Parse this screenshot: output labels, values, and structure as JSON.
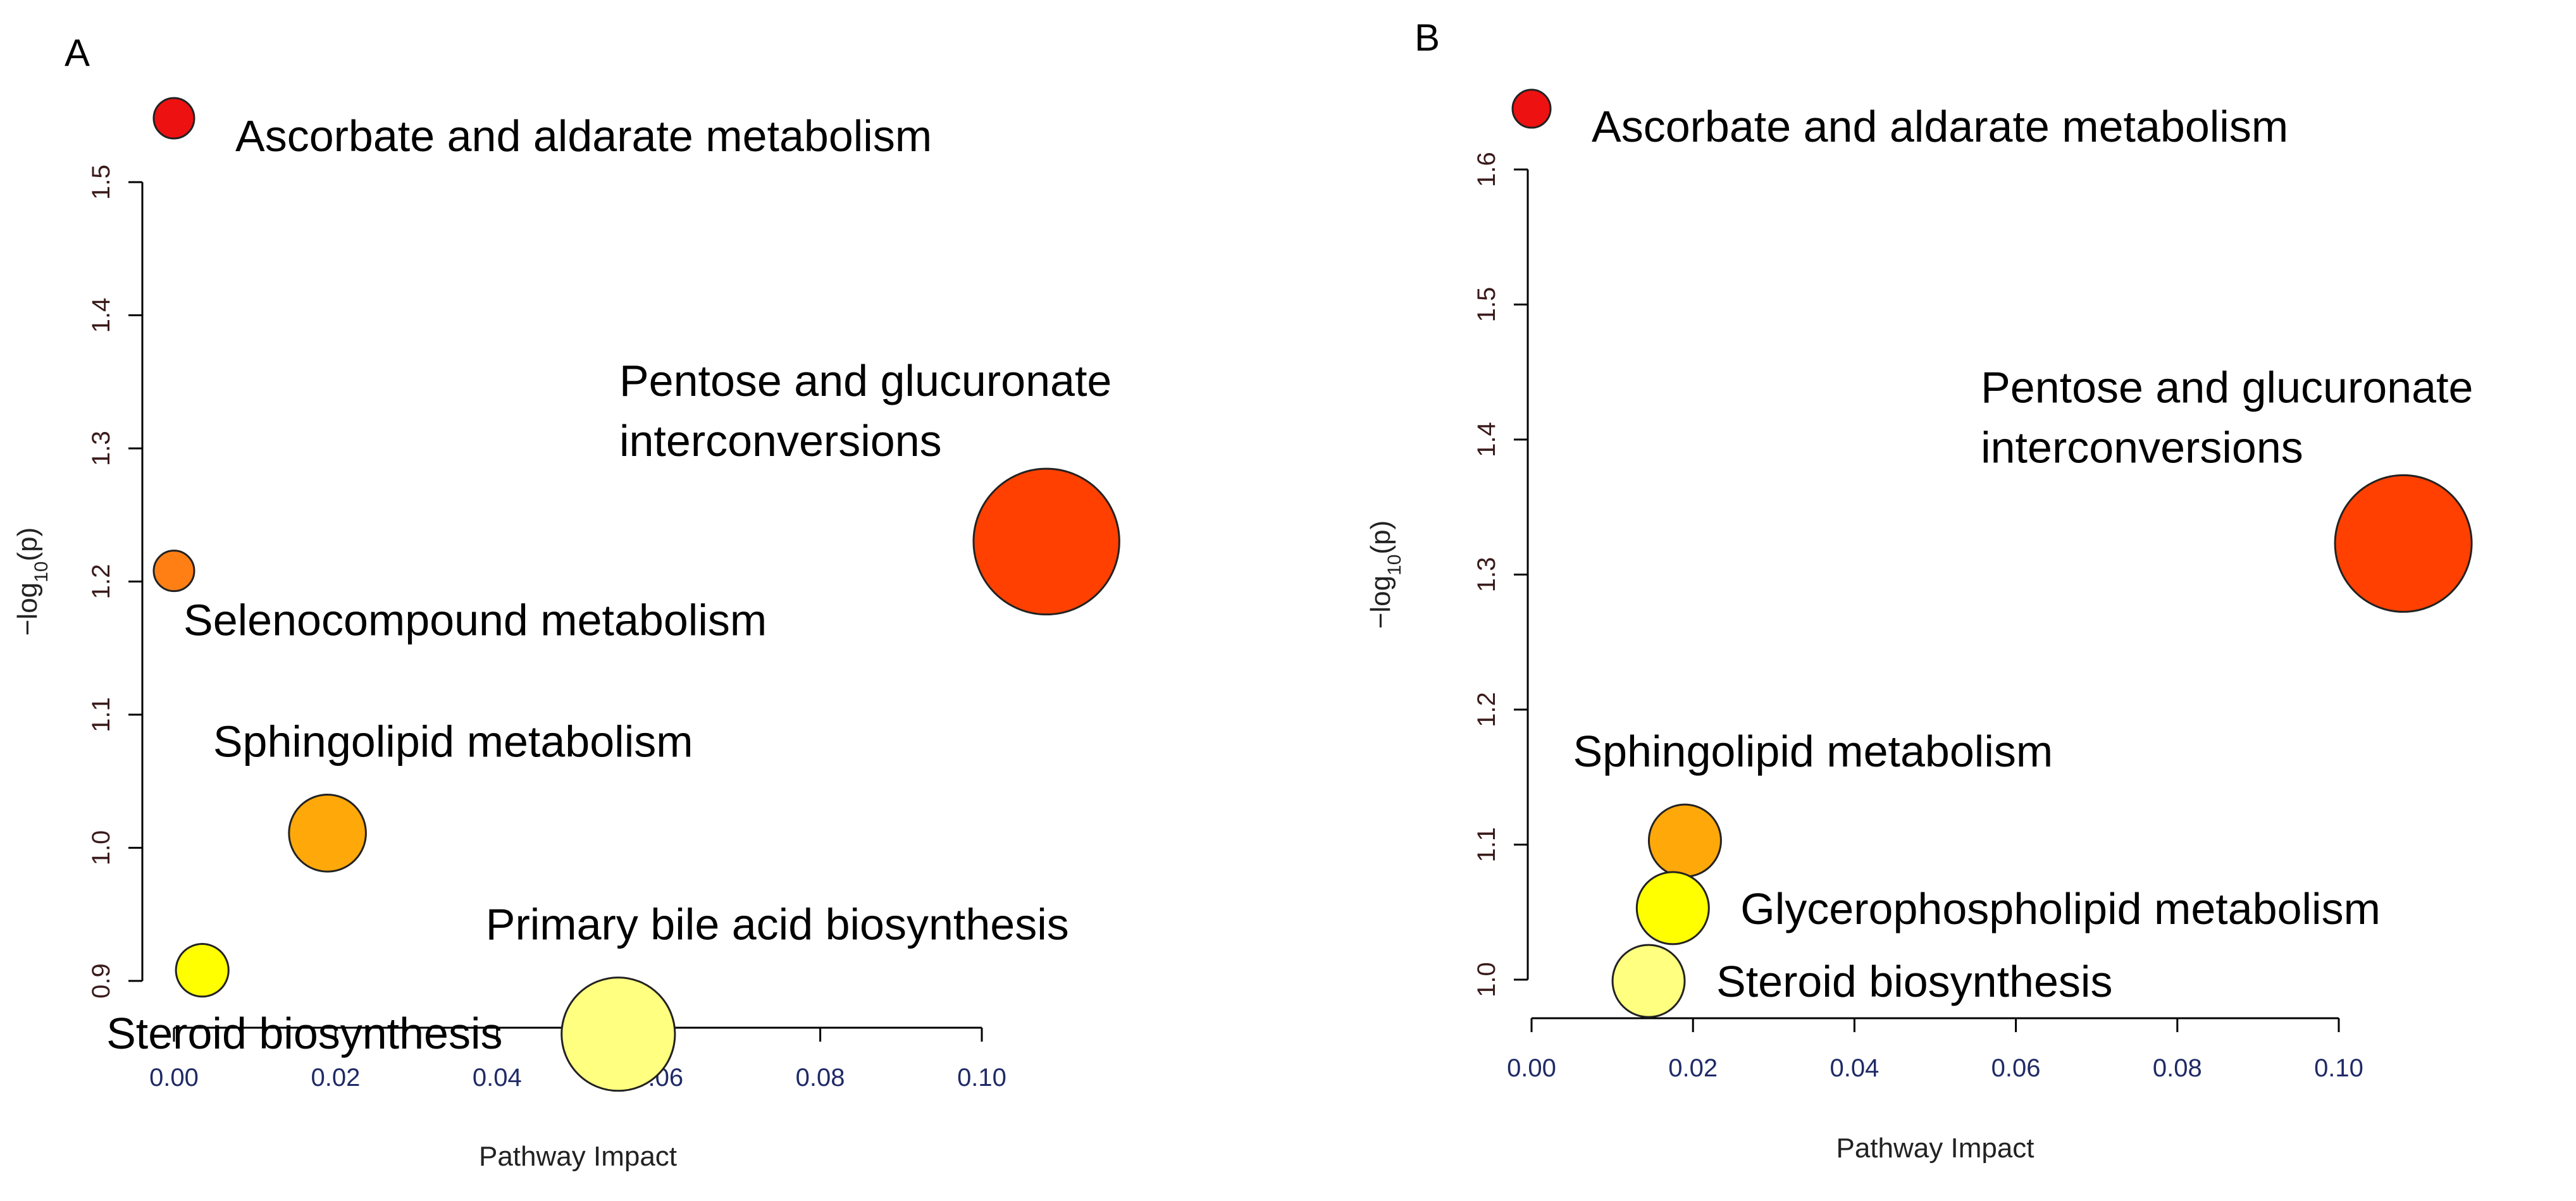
{
  "chart_data": [
    {
      "type": "scatter",
      "panel_label": "A",
      "xlabel": "Pathway  Impact",
      "ylabel_main": "−log",
      "ylabel_sub": "10",
      "ylabel_tail": "(p)",
      "xlim": [
        0,
        0.1
      ],
      "ylim": [
        0.9,
        1.5
      ],
      "xticks": [
        0.0,
        0.02,
        0.04,
        0.06,
        0.08,
        0.1
      ],
      "xtick_labels": [
        "0.00",
        "0.02",
        "0.04",
        "0.06",
        "0.08",
        "0.10"
      ],
      "yticks": [
        0.9,
        1.0,
        1.1,
        1.2,
        1.3,
        1.4,
        1.5
      ],
      "ytick_labels": [
        "0.9",
        "1.0",
        "1.1",
        "1.2",
        "1.3",
        "1.4",
        "1.5"
      ],
      "points": [
        {
          "name": "Ascorbate and aldarate metabolism",
          "x": 0.0,
          "y": 1.548,
          "size": 1.0,
          "color": "#ee1111",
          "label_pos": "right-below"
        },
        {
          "name": "Pentose and glucuronate interconversions",
          "label_lines": [
            "Pentose and glucuronate",
            "interconversions"
          ],
          "x": 0.108,
          "y": 1.23,
          "size": 3.6,
          "color": "#ff4000",
          "label_pos": "above-left"
        },
        {
          "name": "Selenocompound metabolism",
          "x": 0.0,
          "y": 1.208,
          "size": 1.0,
          "color": "#ff7f14",
          "label_pos": "below-right"
        },
        {
          "name": "Sphingolipid metabolism",
          "x": 0.019,
          "y": 1.011,
          "size": 1.9,
          "color": "#ffa80a",
          "label_pos": "above"
        },
        {
          "name": "Steroid biosynthesis",
          "x": 0.0035,
          "y": 0.908,
          "size": 1.3,
          "color": "#ffff00",
          "label_pos": "below-left"
        },
        {
          "name": "Primary bile acid biosynthesis",
          "x": 0.055,
          "y": 0.86,
          "size": 2.8,
          "color": "#ffff80",
          "label_pos": "above"
        }
      ]
    },
    {
      "type": "scatter",
      "panel_label": "B",
      "xlabel": "Pathway  Impact",
      "ylabel_main": "−log",
      "ylabel_sub": "10",
      "ylabel_tail": "(p)",
      "xlim": [
        0,
        0.1
      ],
      "ylim": [
        1.0,
        1.6
      ],
      "xticks": [
        0.0,
        0.02,
        0.04,
        0.06,
        0.08,
        0.1
      ],
      "xtick_labels": [
        "0.00",
        "0.02",
        "0.04",
        "0.06",
        "0.08",
        "0.10"
      ],
      "yticks": [
        1.0,
        1.1,
        1.2,
        1.3,
        1.4,
        1.5,
        1.6
      ],
      "ytick_labels": [
        "1.0",
        "1.1",
        "1.2",
        "1.3",
        "1.4",
        "1.5",
        "1.6"
      ],
      "points": [
        {
          "name": "Ascorbate and aldarate metabolism",
          "x": 0.0,
          "y": 1.645,
          "size": 1.0,
          "color": "#ee1111",
          "label_pos": "right-below"
        },
        {
          "name": "Pentose and glucuronate interconversions",
          "label_lines": [
            "Pentose and glucuronate",
            "interconversions"
          ],
          "x": 0.108,
          "y": 1.323,
          "size": 3.6,
          "color": "#ff4000",
          "label_pos": "above-left"
        },
        {
          "name": "Sphingolipid metabolism",
          "x": 0.019,
          "y": 1.103,
          "size": 1.9,
          "color": "#ffa80a",
          "label_pos": "above"
        },
        {
          "name": "Glycerophospholipid metabolism",
          "x": 0.0175,
          "y": 1.053,
          "size": 1.9,
          "color": "#ffff00",
          "label_pos": "right"
        },
        {
          "name": "Steroid biosynthesis",
          "x": 0.0145,
          "y": 0.999,
          "size": 1.9,
          "color": "#ffff80",
          "label_pos": "right"
        }
      ]
    }
  ]
}
